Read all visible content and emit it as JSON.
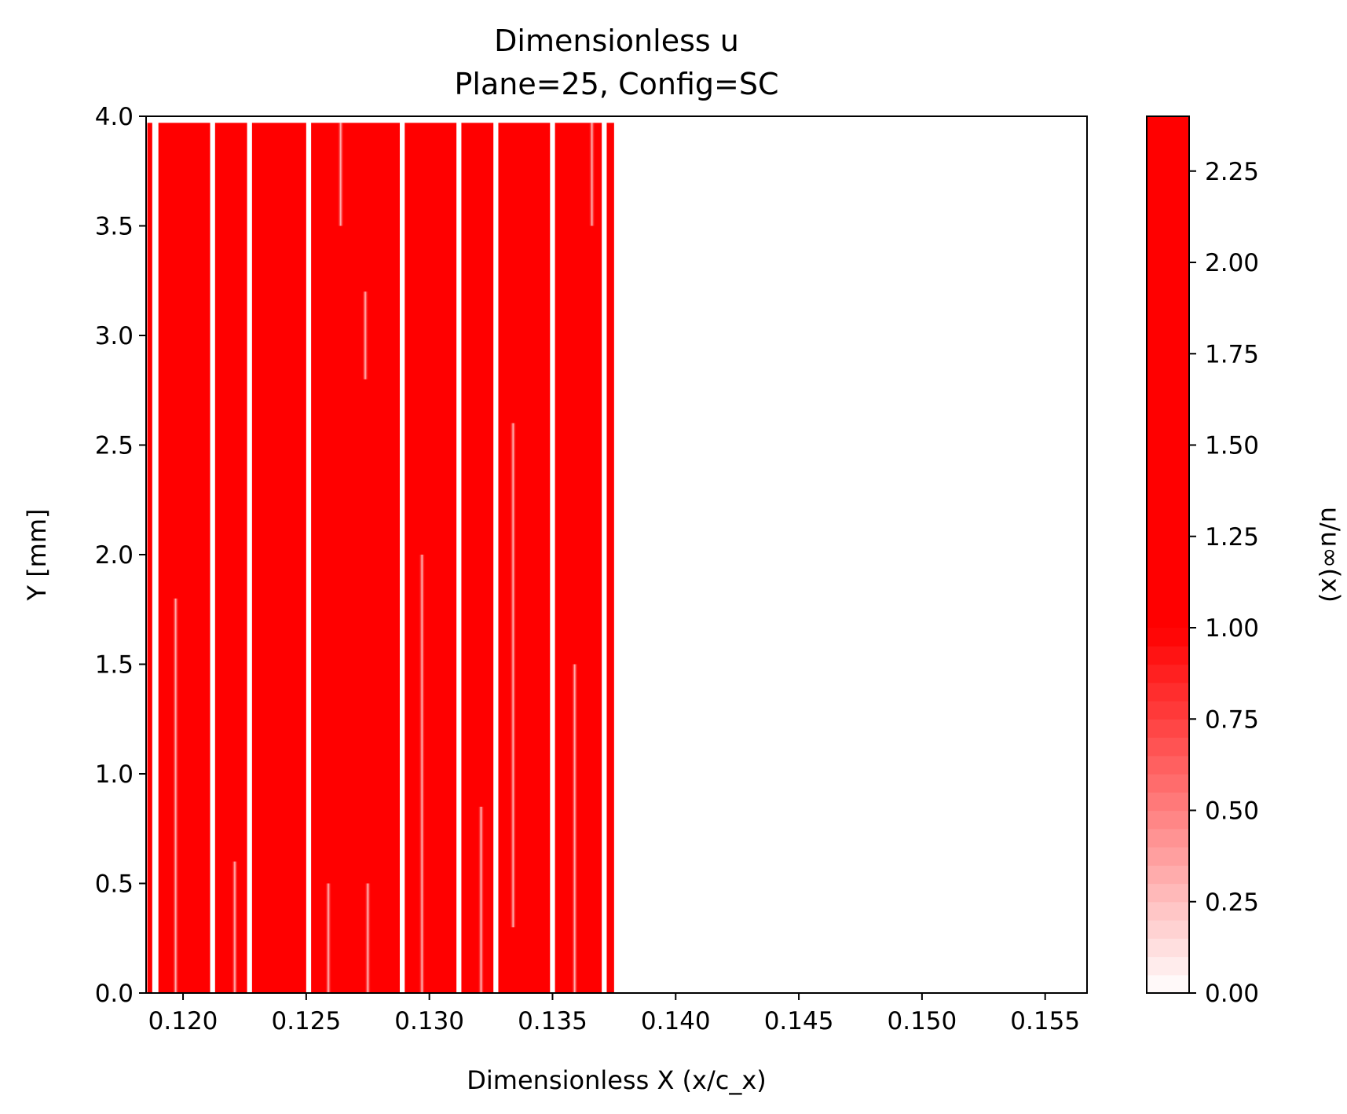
{
  "chart_data": {
    "type": "heatmap",
    "title": "Dimensionless u",
    "subtitle": "Plane=25, Config=SC",
    "xlabel": "Dimensionless X (x/c_x)",
    "ylabel": "Y [mm]",
    "xlim": [
      0.1185,
      0.1567
    ],
    "ylim": [
      0.0,
      4.0
    ],
    "xticks": [
      "0.120",
      "0.125",
      "0.130",
      "0.135",
      "0.140",
      "0.145",
      "0.150",
      "0.155"
    ],
    "yticks": [
      "0.0",
      "0.5",
      "1.0",
      "1.5",
      "2.0",
      "2.5",
      "3.0",
      "3.5",
      "4.0"
    ],
    "colorbar": {
      "label": "u/u∞(x)",
      "range": [
        0.0,
        2.4
      ],
      "ticks": [
        "0.00",
        "0.25",
        "0.50",
        "0.75",
        "1.00",
        "1.25",
        "1.50",
        "1.75",
        "2.00",
        "2.25"
      ],
      "colormap": [
        "#ffffff",
        "#ff0000"
      ],
      "saturation_value": 1.0
    },
    "data_y_extent": [
      0.0,
      3.97
    ],
    "field_color": "#ff0000",
    "bands": [
      {
        "x0": 0.11855,
        "x1": 0.11875
      },
      {
        "x0": 0.119,
        "x1": 0.1211
      },
      {
        "x0": 0.1213,
        "x1": 0.1226
      },
      {
        "x0": 0.1228,
        "x1": 0.125
      },
      {
        "x0": 0.1252,
        "x1": 0.1288
      },
      {
        "x0": 0.129,
        "x1": 0.1311
      },
      {
        "x0": 0.1313,
        "x1": 0.1326
      },
      {
        "x0": 0.1328,
        "x1": 0.1349
      },
      {
        "x0": 0.1351,
        "x1": 0.137
      },
      {
        "x0": 0.1372,
        "x1": 0.1375
      }
    ],
    "streaks": [
      {
        "x": 0.1197,
        "y0": 0.0,
        "y1": 1.8
      },
      {
        "x": 0.1221,
        "y0": 0.0,
        "y1": 0.6
      },
      {
        "x": 0.1259,
        "y0": 0.0,
        "y1": 0.5
      },
      {
        "x": 0.1264,
        "y0": 3.5,
        "y1": 3.97
      },
      {
        "x": 0.1275,
        "y0": 0.0,
        "y1": 0.5
      },
      {
        "x": 0.1274,
        "y0": 2.8,
        "y1": 3.2
      },
      {
        "x": 0.1297,
        "y0": 0.0,
        "y1": 2.0
      },
      {
        "x": 0.1321,
        "y0": 0.0,
        "y1": 0.85
      },
      {
        "x": 0.1334,
        "y0": 0.3,
        "y1": 2.6
      },
      {
        "x": 0.1359,
        "y0": 0.0,
        "y1": 1.5
      },
      {
        "x": 0.1366,
        "y0": 3.5,
        "y1": 3.97
      }
    ]
  }
}
